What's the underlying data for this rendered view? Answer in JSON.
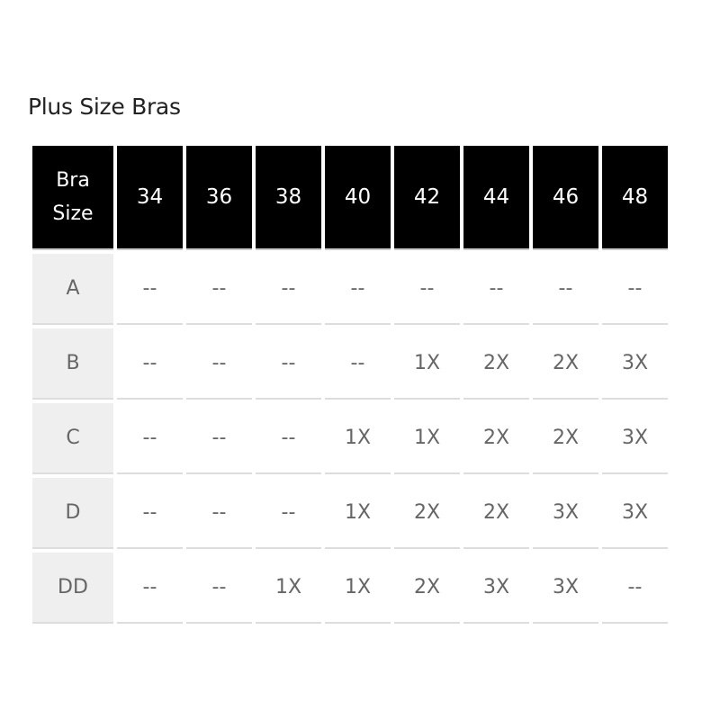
{
  "title": "Plus Size Bras",
  "table": {
    "corner_header": [
      "Bra",
      "Size"
    ],
    "band_sizes": [
      "34",
      "36",
      "38",
      "40",
      "42",
      "44",
      "46",
      "48"
    ],
    "rows": [
      {
        "cup": "A",
        "values": [
          "--",
          "--",
          "--",
          "--",
          "--",
          "--",
          "--",
          "--"
        ]
      },
      {
        "cup": "B",
        "values": [
          "--",
          "--",
          "--",
          "--",
          "1X",
          "2X",
          "2X",
          "3X"
        ]
      },
      {
        "cup": "C",
        "values": [
          "--",
          "--",
          "--",
          "1X",
          "1X",
          "2X",
          "2X",
          "3X"
        ]
      },
      {
        "cup": "D",
        "values": [
          "--",
          "--",
          "--",
          "1X",
          "2X",
          "2X",
          "3X",
          "3X"
        ]
      },
      {
        "cup": "DD",
        "values": [
          "--",
          "--",
          "1X",
          "1X",
          "2X",
          "3X",
          "3X",
          "--"
        ]
      }
    ]
  }
}
